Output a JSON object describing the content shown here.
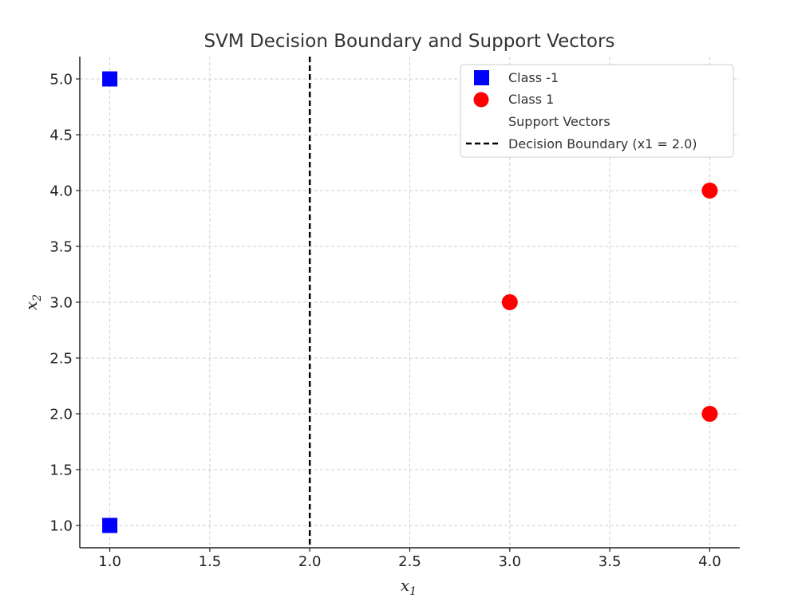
{
  "chart_data": {
    "type": "scatter",
    "title": "SVM Decision Boundary and Support Vectors",
    "xlabel": "x",
    "xlabel_sub": "1",
    "ylabel": "x",
    "ylabel_sub": "2",
    "xlim": [
      0.85,
      4.15
    ],
    "ylim": [
      0.8,
      5.2
    ],
    "xticks": [
      1.0,
      1.5,
      2.0,
      2.5,
      3.0,
      3.5,
      4.0
    ],
    "xtick_labels": [
      "1.0",
      "1.5",
      "2.0",
      "2.5",
      "3.0",
      "3.5",
      "4.0"
    ],
    "yticks": [
      1.0,
      1.5,
      2.0,
      2.5,
      3.0,
      3.5,
      4.0,
      4.5,
      5.0
    ],
    "ytick_labels": [
      "1.0",
      "1.5",
      "2.0",
      "2.5",
      "3.0",
      "3.5",
      "4.0",
      "4.5",
      "5.0"
    ],
    "grid": true,
    "legend_position": "top-right",
    "series": [
      {
        "name": "Class -1",
        "marker": "square",
        "color": "#0000ff",
        "points": [
          [
            1.0,
            5.0
          ],
          [
            1.0,
            1.0
          ]
        ]
      },
      {
        "name": "Class 1",
        "marker": "circle",
        "color": "#ff0000",
        "points": [
          [
            3.0,
            3.0
          ],
          [
            4.0,
            4.0
          ],
          [
            4.0,
            2.0
          ]
        ]
      },
      {
        "name": "Support Vectors",
        "marker": "none",
        "color": "#ffffff",
        "points": []
      }
    ],
    "decision_boundary": {
      "name": "Decision Boundary (x1 = 2.0)",
      "x": 2.0,
      "style": "dashed",
      "color": "#000000"
    }
  }
}
